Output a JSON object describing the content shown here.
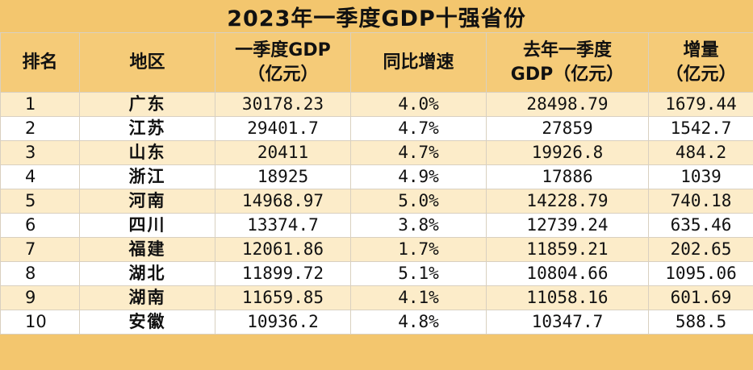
{
  "title": "2023年一季度GDP十强省份",
  "headers": {
    "rank": "排名",
    "region": "地区",
    "gdp_l1": "一季度GDP",
    "gdp_l2": "（亿元）",
    "growth": "同比增速",
    "prev_l1": "去年一季度",
    "prev_l2": "GDP（亿元）",
    "inc_l1": "增量",
    "inc_l2": "（亿元）"
  },
  "chart_data": {
    "type": "table",
    "title": "2023年一季度GDP十强省份",
    "columns": [
      "排名",
      "地区",
      "一季度GDP（亿元）",
      "同比增速",
      "去年一季度GDP（亿元）",
      "增量（亿元）"
    ],
    "rows": [
      {
        "rank": "1",
        "region": "广东",
        "gdp": "30178.23",
        "growth": "4.0%",
        "prev": "28498.79",
        "inc": "1679.44"
      },
      {
        "rank": "2",
        "region": "江苏",
        "gdp": "29401.7",
        "growth": "4.7%",
        "prev": "27859",
        "inc": "1542.7"
      },
      {
        "rank": "3",
        "region": "山东",
        "gdp": "20411",
        "growth": "4.7%",
        "prev": "19926.8",
        "inc": "484.2"
      },
      {
        "rank": "4",
        "region": "浙江",
        "gdp": "18925",
        "growth": "4.9%",
        "prev": "17886",
        "inc": "1039"
      },
      {
        "rank": "5",
        "region": "河南",
        "gdp": "14968.97",
        "growth": "5.0%",
        "prev": "14228.79",
        "inc": "740.18"
      },
      {
        "rank": "6",
        "region": "四川",
        "gdp": "13374.7",
        "growth": "3.8%",
        "prev": "12739.24",
        "inc": "635.46"
      },
      {
        "rank": "7",
        "region": "福建",
        "gdp": "12061.86",
        "growth": "1.7%",
        "prev": "11859.21",
        "inc": "202.65"
      },
      {
        "rank": "8",
        "region": "湖北",
        "gdp": "11899.72",
        "growth": "5.1%",
        "prev": "10804.66",
        "inc": "1095.06"
      },
      {
        "rank": "9",
        "region": "湖南",
        "gdp": "11659.85",
        "growth": "4.1%",
        "prev": "11058.16",
        "inc": "601.69"
      },
      {
        "rank": "10",
        "region": "安徽",
        "gdp": "10936.2",
        "growth": "4.8%",
        "prev": "10347.7",
        "inc": "588.5"
      }
    ]
  },
  "colors": {
    "header_bg": "#f5cb78",
    "row_odd": "#fcecc9",
    "row_even": "#ffffff"
  }
}
